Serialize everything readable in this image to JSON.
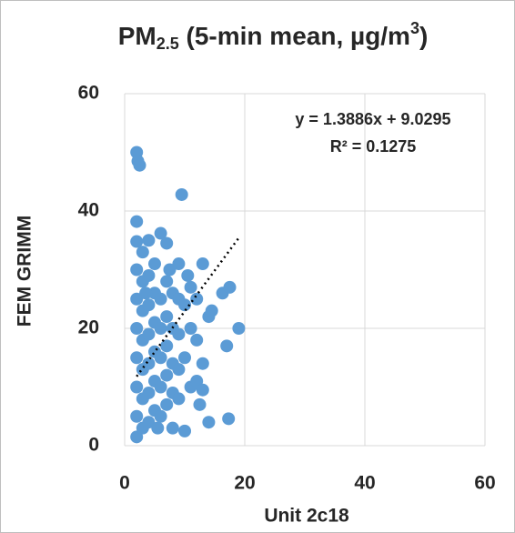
{
  "chart_data": {
    "type": "scatter",
    "title": [
      "PM",
      "2.5",
      " (5-min mean, µg/m",
      "3",
      ")"
    ],
    "x_label": "Unit 2c18",
    "y_label": "FEM GRIMM",
    "annotations": [
      "y = 1.3886x + 9.0295",
      "R² = 0.1275"
    ],
    "xlim": [
      0,
      60
    ],
    "xticks": [
      0,
      20,
      40,
      60
    ],
    "ylim": [
      0,
      60
    ],
    "yticks": [
      0,
      20,
      40,
      60
    ],
    "grid": true,
    "series": [
      {
        "color": "#5b9bd5",
        "x": [
          2,
          2,
          2,
          2,
          2,
          2,
          2,
          2,
          2,
          2,
          2.2,
          2.5,
          3,
          3,
          3,
          3,
          3,
          3,
          3,
          4,
          4,
          4,
          4,
          4,
          4,
          4,
          5,
          5,
          5,
          5,
          5,
          5,
          6,
          6,
          6,
          6,
          6,
          6,
          7,
          7,
          7,
          7,
          7,
          7,
          8,
          8,
          8,
          8,
          8,
          9,
          9,
          9,
          9,
          9,
          9.5,
          10,
          10,
          10,
          11,
          11,
          11,
          12,
          12,
          12,
          13,
          13,
          13,
          14,
          14,
          14.5,
          16.3,
          17,
          17.3,
          17.5,
          19,
          3.5,
          5.5,
          7.5,
          10.5,
          12.5
        ],
        "values": [
          1.5,
          5,
          10,
          15,
          20,
          25,
          30,
          34.8,
          38.2,
          50,
          48.5,
          47.8,
          3,
          8,
          13,
          18,
          23,
          28,
          33,
          4,
          9,
          14,
          19,
          24,
          29,
          35,
          6,
          11,
          16,
          21,
          26,
          31,
          5,
          10,
          15,
          20,
          25,
          36.2,
          7,
          12,
          17,
          22,
          28,
          34.5,
          3,
          9,
          14,
          20,
          26,
          8,
          13,
          19,
          25,
          31,
          42.8,
          2.5,
          15,
          24,
          10,
          20,
          27,
          11,
          18,
          25,
          31,
          14,
          9.5,
          4,
          22,
          23,
          26,
          17,
          4.6,
          27,
          20,
          26,
          3,
          30,
          29,
          7
        ]
      }
    ],
    "trendline": {
      "slope": 1.3886,
      "intercept": 9.0295,
      "x_range": [
        2,
        19
      ],
      "color": "#000000"
    }
  }
}
